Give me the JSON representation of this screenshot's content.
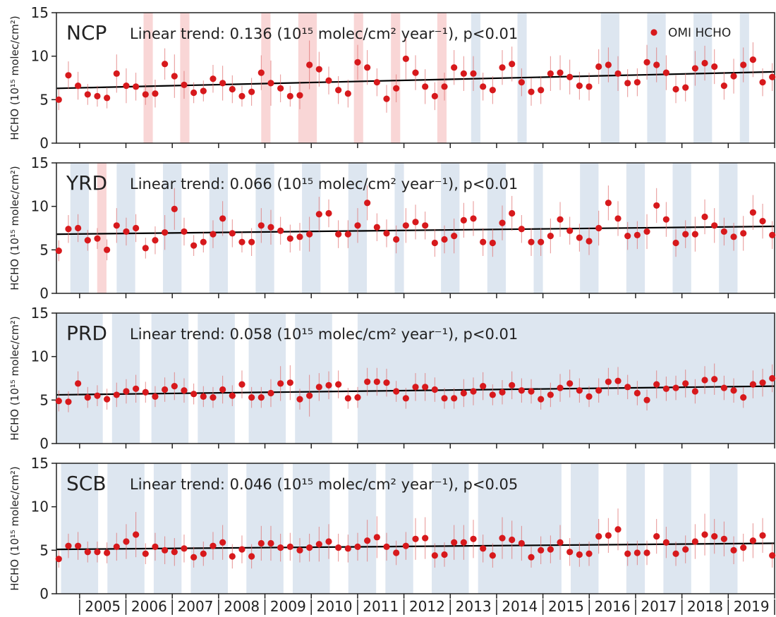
{
  "chart_data": {
    "type": "scatter",
    "x_start": 2004.5,
    "x_end": 2020.0,
    "ylim": [
      0,
      15
    ],
    "yticks": [
      0,
      5,
      10,
      15
    ],
    "xtick_years": [
      "2005",
      "2006",
      "2007",
      "2008",
      "2009",
      "2010",
      "2011",
      "2012",
      "2013",
      "2014",
      "2015",
      "2016",
      "2017",
      "2018",
      "2019"
    ],
    "ylabel": "HCHO (10¹⁵ molec/cm²)",
    "legend": {
      "label": "OMI HCHO",
      "position": "top-right",
      "color": "#d7191c"
    },
    "colors": {
      "point": "#d7191c",
      "errorbar": "#e07070",
      "trend": "#000000",
      "blue_band": "#dde6f0",
      "red_band": "#f9d6d6"
    },
    "panels": [
      {
        "name": "NCP",
        "trend_text": "Linear trend: 0.136 (10¹⁵ molec/cm² year⁻¹), p<0.01",
        "trend_line": [
          6.3,
          8.2
        ],
        "values": [
          5.0,
          7.8,
          6.6,
          5.6,
          5.4,
          5.2,
          8.0,
          6.6,
          6.5,
          5.6,
          5.7,
          9.1,
          7.7,
          6.7,
          5.8,
          6.0,
          7.4,
          6.9,
          6.2,
          5.4,
          5.9,
          8.1,
          6.9,
          6.3,
          5.4,
          5.5,
          9.0,
          8.5,
          7.2,
          6.1,
          5.7,
          9.3,
          8.7,
          7.0,
          5.1,
          6.3,
          9.7,
          8.1,
          6.5,
          5.4,
          6.5,
          8.7,
          8.0,
          8.0,
          6.5,
          6.1,
          8.7,
          9.1,
          7.0,
          5.9,
          6.1,
          8.0,
          8.1,
          7.6,
          6.6,
          6.5,
          8.8,
          9.0,
          8.0,
          6.9,
          7.0,
          9.3,
          9.0,
          8.1,
          6.2,
          6.4,
          8.6,
          9.2,
          8.8,
          6.6,
          7.7,
          9.0,
          9.6,
          7.0,
          7.6
        ],
        "errors": [
          1.2,
          1.6,
          1.6,
          1.2,
          1.2,
          1.2,
          2.2,
          2.0,
          1.6,
          1.2,
          1.6,
          1.8,
          2.5,
          1.6,
          1.2,
          1.2,
          1.6,
          2.0,
          1.6,
          1.2,
          1.6,
          2.0,
          2.6,
          1.6,
          1.2,
          1.6,
          2.8,
          2.0,
          1.6,
          1.6,
          1.6,
          2.0,
          2.0,
          1.6,
          1.6,
          1.6,
          2.4,
          2.0,
          2.0,
          1.6,
          1.6,
          2.0,
          2.0,
          2.0,
          1.6,
          1.6,
          2.0,
          2.0,
          1.6,
          1.6,
          1.6,
          2.0,
          2.0,
          2.0,
          1.6,
          1.6,
          2.0,
          2.0,
          2.0,
          1.6,
          1.6,
          2.0,
          2.0,
          2.0,
          1.6,
          1.6,
          2.0,
          2.0,
          2.0,
          1.6,
          2.0,
          2.0,
          2.0,
          1.6,
          1.6
        ],
        "bands": [
          {
            "from": 2006.38,
            "to": 2006.58,
            "color": "red"
          },
          {
            "from": 2007.17,
            "to": 2007.37,
            "color": "red"
          },
          {
            "from": 2008.92,
            "to": 2009.12,
            "color": "red"
          },
          {
            "from": 2009.72,
            "to": 2010.12,
            "color": "red"
          },
          {
            "from": 2010.92,
            "to": 2011.12,
            "color": "red"
          },
          {
            "from": 2011.72,
            "to": 2011.92,
            "color": "red"
          },
          {
            "from": 2012.72,
            "to": 2012.92,
            "color": "red"
          },
          {
            "from": 2013.45,
            "to": 2013.65,
            "color": "blue"
          },
          {
            "from": 2014.45,
            "to": 2014.65,
            "color": "blue"
          },
          {
            "from": 2016.25,
            "to": 2016.65,
            "color": "blue"
          },
          {
            "from": 2017.25,
            "to": 2017.65,
            "color": "blue"
          },
          {
            "from": 2018.25,
            "to": 2018.65,
            "color": "blue"
          },
          {
            "from": 2019.25,
            "to": 2019.45,
            "color": "blue"
          }
        ]
      },
      {
        "name": "YRD",
        "trend_text": "Linear trend: 0.066 (10¹⁵ molec/cm² year⁻¹), p<0.01",
        "trend_line": [
          6.8,
          7.7
        ],
        "values": [
          4.9,
          7.4,
          7.5,
          6.1,
          6.3,
          5.0,
          7.8,
          7.1,
          7.5,
          5.2,
          6.1,
          7.0,
          9.7,
          7.1,
          5.5,
          5.9,
          6.8,
          8.6,
          6.9,
          5.9,
          5.9,
          7.8,
          7.6,
          7.2,
          6.3,
          6.5,
          6.8,
          9.1,
          9.2,
          6.8,
          6.8,
          7.8,
          10.4,
          7.6,
          6.9,
          6.2,
          7.8,
          8.2,
          7.8,
          5.8,
          6.2,
          6.6,
          8.4,
          8.6,
          5.9,
          5.8,
          8.1,
          9.2,
          7.4,
          5.9,
          5.9,
          6.6,
          8.5,
          7.2,
          6.4,
          6.0,
          7.5,
          10.4,
          8.6,
          6.6,
          6.7,
          7.1,
          10.1,
          8.5,
          5.8,
          6.8,
          6.8,
          8.8,
          7.8,
          7.1,
          6.5,
          6.9,
          9.3,
          8.3,
          6.7
        ],
        "errors": [
          1.2,
          1.6,
          1.6,
          1.2,
          1.2,
          1.2,
          2.0,
          1.6,
          1.6,
          1.2,
          1.6,
          2.0,
          2.4,
          1.6,
          1.2,
          1.2,
          1.6,
          2.0,
          1.6,
          1.2,
          1.6,
          2.0,
          2.0,
          1.6,
          1.6,
          1.6,
          2.0,
          2.0,
          1.6,
          1.6,
          1.6,
          2.0,
          2.0,
          1.6,
          1.6,
          1.6,
          2.0,
          2.0,
          1.6,
          1.6,
          1.6,
          2.0,
          2.0,
          2.0,
          1.6,
          1.6,
          2.0,
          2.0,
          1.6,
          1.6,
          1.6,
          2.0,
          2.0,
          1.6,
          1.6,
          1.6,
          2.0,
          2.0,
          2.0,
          1.6,
          1.6,
          2.0,
          2.0,
          2.0,
          1.6,
          1.6,
          2.0,
          2.0,
          2.0,
          1.6,
          1.6,
          2.0,
          2.0,
          2.0,
          1.6
        ],
        "bands": [
          {
            "from": 2004.8,
            "to": 2005.2,
            "color": "blue"
          },
          {
            "from": 2005.38,
            "to": 2005.58,
            "color": "red"
          },
          {
            "from": 2005.8,
            "to": 2006.2,
            "color": "blue"
          },
          {
            "from": 2006.8,
            "to": 2007.2,
            "color": "blue"
          },
          {
            "from": 2007.8,
            "to": 2008.2,
            "color": "blue"
          },
          {
            "from": 2008.8,
            "to": 2009.2,
            "color": "blue"
          },
          {
            "from": 2009.8,
            "to": 2010.2,
            "color": "blue"
          },
          {
            "from": 2010.8,
            "to": 2011.2,
            "color": "blue"
          },
          {
            "from": 2011.8,
            "to": 2012.0,
            "color": "blue"
          },
          {
            "from": 2012.8,
            "to": 2013.2,
            "color": "blue"
          },
          {
            "from": 2013.8,
            "to": 2014.2,
            "color": "blue"
          },
          {
            "from": 2014.8,
            "to": 2015.0,
            "color": "blue"
          },
          {
            "from": 2015.8,
            "to": 2016.2,
            "color": "blue"
          },
          {
            "from": 2016.8,
            "to": 2017.2,
            "color": "blue"
          },
          {
            "from": 2017.8,
            "to": 2018.2,
            "color": "blue"
          },
          {
            "from": 2018.8,
            "to": 2019.2,
            "color": "blue"
          }
        ]
      },
      {
        "name": "PRD",
        "trend_text": "Linear trend: 0.058 (10¹⁵ molec/cm² year⁻¹), p<0.01",
        "trend_line": [
          5.6,
          6.6
        ],
        "values": [
          4.9,
          4.8,
          6.9,
          5.3,
          5.5,
          5.1,
          5.6,
          6.0,
          6.3,
          5.9,
          5.4,
          6.2,
          6.6,
          6.1,
          5.7,
          5.4,
          5.3,
          6.2,
          5.5,
          6.8,
          5.3,
          5.3,
          5.8,
          6.9,
          7.0,
          5.1,
          5.5,
          6.5,
          6.7,
          6.8,
          5.2,
          5.3,
          7.1,
          7.1,
          7.0,
          6.0,
          5.2,
          6.5,
          6.5,
          6.2,
          5.2,
          5.2,
          5.8,
          6.0,
          6.6,
          5.6,
          5.9,
          6.7,
          6.1,
          6.0,
          5.1,
          5.6,
          6.4,
          6.9,
          6.1,
          5.4,
          6.1,
          7.1,
          7.2,
          6.5,
          5.8,
          5.0,
          6.8,
          6.3,
          6.4,
          6.9,
          6.0,
          7.3,
          7.4,
          6.4,
          6.1,
          5.3,
          6.8,
          7.0,
          7.5
        ],
        "errors": [
          1.2,
          1.2,
          1.4,
          1.2,
          1.2,
          1.2,
          1.4,
          1.4,
          1.6,
          1.2,
          1.2,
          1.4,
          1.6,
          1.4,
          1.2,
          1.2,
          1.2,
          1.6,
          1.2,
          1.6,
          1.2,
          1.2,
          1.6,
          2.0,
          2.0,
          1.2,
          2.4,
          1.6,
          1.6,
          1.6,
          1.2,
          1.2,
          1.6,
          1.6,
          1.6,
          1.2,
          1.2,
          1.6,
          1.6,
          1.4,
          1.2,
          1.2,
          1.6,
          1.6,
          1.6,
          1.2,
          1.4,
          1.6,
          1.4,
          1.4,
          1.2,
          1.4,
          1.6,
          1.6,
          1.4,
          1.2,
          1.4,
          1.6,
          1.6,
          1.4,
          1.4,
          1.2,
          1.6,
          1.4,
          1.4,
          1.6,
          1.4,
          1.6,
          1.8,
          1.4,
          1.4,
          1.2,
          1.6,
          1.6,
          1.6
        ],
        "bands": [
          {
            "from": 2004.5,
            "to": 2005.5,
            "color": "blue"
          },
          {
            "from": 2005.7,
            "to": 2006.3,
            "color": "blue"
          },
          {
            "from": 2006.55,
            "to": 2007.35,
            "color": "blue"
          },
          {
            "from": 2007.55,
            "to": 2008.35,
            "color": "blue"
          },
          {
            "from": 2008.65,
            "to": 2009.45,
            "color": "blue"
          },
          {
            "from": 2009.65,
            "to": 2010.45,
            "color": "blue"
          },
          {
            "from": 2011.0,
            "to": 2020.0,
            "color": "blue"
          }
        ]
      },
      {
        "name": "SCB",
        "trend_text": "Linear trend: 0.046 (10¹⁵ molec/cm² year⁻¹), p<0.05",
        "trend_line": [
          5.1,
          5.8
        ],
        "values": [
          4.0,
          5.5,
          5.5,
          4.8,
          4.8,
          4.7,
          5.4,
          6.0,
          6.8,
          4.6,
          5.4,
          5.0,
          4.8,
          5.2,
          4.2,
          4.6,
          5.5,
          5.9,
          4.3,
          5.1,
          4.3,
          5.8,
          5.8,
          5.3,
          5.4,
          5.0,
          5.3,
          5.7,
          6.0,
          5.3,
          5.2,
          5.4,
          6.1,
          6.5,
          5.4,
          4.7,
          5.5,
          6.3,
          6.4,
          4.4,
          4.5,
          5.9,
          5.9,
          6.3,
          5.2,
          4.4,
          6.4,
          6.2,
          5.8,
          4.2,
          5.0,
          5.1,
          5.9,
          4.8,
          4.5,
          4.6,
          6.6,
          6.7,
          7.4,
          4.6,
          4.7,
          4.7,
          6.6,
          5.9,
          4.6,
          5.1,
          6.0,
          6.8,
          6.6,
          6.3,
          5.0,
          5.3,
          6.1,
          6.7,
          4.4
        ],
        "errors": [
          1.0,
          1.4,
          1.6,
          1.2,
          1.2,
          1.2,
          1.6,
          2.0,
          2.6,
          1.2,
          1.6,
          1.6,
          1.6,
          1.6,
          1.2,
          1.4,
          1.6,
          2.0,
          1.4,
          1.6,
          1.4,
          2.0,
          2.0,
          1.6,
          1.6,
          1.4,
          1.6,
          2.0,
          2.0,
          1.6,
          1.6,
          1.6,
          2.4,
          2.4,
          1.6,
          1.4,
          1.6,
          2.4,
          2.4,
          1.4,
          1.4,
          2.0,
          2.0,
          2.2,
          1.6,
          1.4,
          2.4,
          2.2,
          2.0,
          1.2,
          1.6,
          1.6,
          2.0,
          1.6,
          1.4,
          1.4,
          2.0,
          2.0,
          2.4,
          1.4,
          1.4,
          1.4,
          2.0,
          1.8,
          1.4,
          1.6,
          2.0,
          2.4,
          2.0,
          2.0,
          1.6,
          1.6,
          2.0,
          2.0,
          1.4
        ],
        "bands": [
          {
            "from": 2004.6,
            "to": 2005.4,
            "color": "blue"
          },
          {
            "from": 2005.6,
            "to": 2006.4,
            "color": "blue"
          },
          {
            "from": 2006.6,
            "to": 2007.2,
            "color": "blue"
          },
          {
            "from": 2007.4,
            "to": 2008.2,
            "color": "blue"
          },
          {
            "from": 2008.6,
            "to": 2009.4,
            "color": "blue"
          },
          {
            "from": 2009.6,
            "to": 2010.4,
            "color": "blue"
          },
          {
            "from": 2010.8,
            "to": 2011.4,
            "color": "blue"
          },
          {
            "from": 2011.6,
            "to": 2012.2,
            "color": "blue"
          },
          {
            "from": 2012.6,
            "to": 2013.4,
            "color": "blue"
          },
          {
            "from": 2013.6,
            "to": 2015.4,
            "color": "blue"
          },
          {
            "from": 2015.6,
            "to": 2016.2,
            "color": "blue"
          },
          {
            "from": 2016.8,
            "to": 2017.2,
            "color": "blue"
          },
          {
            "from": 2017.6,
            "to": 2018.2,
            "color": "blue"
          },
          {
            "from": 2018.6,
            "to": 2019.2,
            "color": "blue"
          }
        ]
      }
    ]
  }
}
